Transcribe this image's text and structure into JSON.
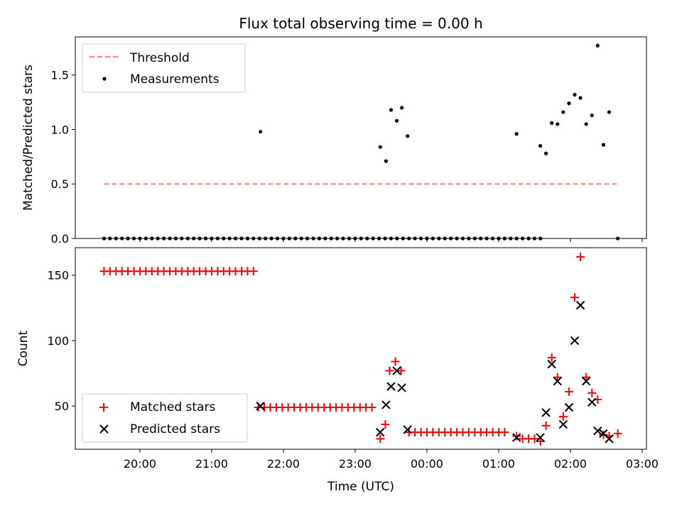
{
  "title": "Flux total observing time = 0.00 h",
  "xlabel": "Time (UTC)",
  "x_ticks": [
    "20:00",
    "21:00",
    "22:00",
    "23:00",
    "00:00",
    "01:00",
    "02:00",
    "03:00"
  ],
  "chart_data": [
    {
      "type": "scatter",
      "panel": "top",
      "ylabel": "Matched/Predicted stars",
      "x_unit": "hours since 19:00 UTC",
      "xlim": [
        0.1,
        8.06
      ],
      "ylim": [
        0.0,
        1.85
      ],
      "y_ticks": [
        0.0,
        0.5,
        1.0,
        1.5
      ],
      "y_tick_labels": [
        "0.0",
        "0.5",
        "1.0",
        "1.5"
      ],
      "legend_position": "upper left",
      "series": [
        {
          "name": "Threshold",
          "style": "dashed-line",
          "color": "#ff7f7f",
          "x": [
            0.5,
            7.66
          ],
          "y": [
            0.5,
            0.5
          ]
        },
        {
          "name": "Measurements",
          "style": "dot",
          "color": "#000000",
          "x": [
            0.5,
            0.583,
            0.667,
            0.75,
            0.833,
            0.917,
            1.0,
            1.083,
            1.167,
            1.25,
            1.333,
            1.417,
            1.5,
            1.583,
            1.667,
            1.75,
            1.833,
            1.917,
            2.0,
            2.083,
            2.167,
            2.25,
            2.333,
            2.417,
            2.5,
            2.583,
            2.667,
            2.75,
            2.833,
            2.917,
            3.0,
            3.083,
            3.167,
            3.25,
            3.333,
            3.417,
            3.5,
            3.583,
            3.667,
            3.75,
            3.833,
            3.917,
            4.0,
            4.083,
            4.167,
            4.25,
            4.333,
            4.417,
            4.5,
            4.583,
            4.667,
            4.75,
            4.833,
            4.917,
            5.0,
            5.083,
            5.167,
            5.25,
            5.333,
            5.417,
            5.5,
            5.583,
            5.667,
            5.75,
            5.833,
            5.917,
            6.0,
            6.083,
            6.167,
            6.25,
            6.333,
            6.417,
            6.5,
            6.583,
            2.68,
            4.35,
            4.43,
            4.5,
            4.58,
            4.65,
            4.73,
            6.25,
            6.58,
            6.66,
            6.74,
            6.82,
            6.9,
            6.98,
            7.06,
            7.14,
            7.22,
            7.3,
            7.38,
            7.46,
            7.54,
            7.66
          ],
          "y": [
            0,
            0,
            0,
            0,
            0,
            0,
            0,
            0,
            0,
            0,
            0,
            0,
            0,
            0,
            0,
            0,
            0,
            0,
            0,
            0,
            0,
            0,
            0,
            0,
            0,
            0,
            0,
            0,
            0,
            0,
            0,
            0,
            0,
            0,
            0,
            0,
            0,
            0,
            0,
            0,
            0,
            0,
            0,
            0,
            0,
            0,
            0,
            0,
            0,
            0,
            0,
            0,
            0,
            0,
            0,
            0,
            0,
            0,
            0,
            0,
            0,
            0,
            0,
            0,
            0,
            0,
            0,
            0,
            0,
            0,
            0,
            0,
            0,
            0,
            0.98,
            0.84,
            0.71,
            1.18,
            1.08,
            1.2,
            0.94,
            0.96,
            0.85,
            0.78,
            1.06,
            1.05,
            1.16,
            1.24,
            1.32,
            1.29,
            1.05,
            1.13,
            1.77,
            0.86,
            1.16,
            0.0
          ]
        }
      ]
    },
    {
      "type": "scatter",
      "panel": "bottom",
      "ylabel": "Count",
      "x_unit": "hours since 19:00 UTC",
      "xlim": [
        0.1,
        8.06
      ],
      "ylim": [
        17.0,
        171.0
      ],
      "y_ticks": [
        50,
        100,
        150
      ],
      "y_tick_labels": [
        "50",
        "100",
        "150"
      ],
      "legend_position": "lower left",
      "series": [
        {
          "name": "Matched stars",
          "marker": "+",
          "color": "#ff0000",
          "x": [
            0.5,
            0.583,
            0.667,
            0.75,
            0.833,
            0.917,
            1.0,
            1.083,
            1.167,
            1.25,
            1.333,
            1.417,
            1.5,
            1.583,
            1.667,
            1.75,
            1.833,
            1.917,
            2.0,
            2.083,
            2.167,
            2.25,
            2.333,
            2.417,
            2.5,
            2.583,
            2.65,
            2.733,
            2.817,
            2.9,
            2.983,
            3.067,
            3.15,
            3.233,
            3.317,
            3.4,
            3.483,
            3.567,
            3.65,
            3.733,
            3.817,
            3.9,
            3.983,
            4.067,
            4.15,
            4.233,
            4.35,
            4.42,
            4.48,
            4.56,
            4.64,
            4.75,
            4.833,
            4.917,
            5.0,
            5.083,
            5.167,
            5.25,
            5.333,
            5.417,
            5.5,
            5.583,
            5.667,
            5.75,
            5.833,
            5.917,
            6.0,
            6.083,
            6.25,
            6.333,
            6.417,
            6.5,
            6.583,
            6.66,
            6.74,
            6.82,
            6.9,
            6.98,
            7.06,
            7.14,
            7.22,
            7.3,
            7.38,
            7.46,
            7.54,
            7.66
          ],
          "y": [
            153,
            153,
            153,
            153,
            153,
            153,
            153,
            153,
            153,
            153,
            153,
            153,
            153,
            153,
            153,
            153,
            153,
            153,
            153,
            153,
            153,
            153,
            153,
            153,
            153,
            153,
            49,
            49,
            49,
            49,
            49,
            49,
            49,
            49,
            49,
            49,
            49,
            49,
            49,
            49,
            49,
            49,
            49,
            49,
            49,
            49,
            25,
            36,
            77,
            84,
            77,
            30,
            30,
            30,
            30,
            30,
            30,
            30,
            30,
            30,
            30,
            30,
            30,
            30,
            30,
            30,
            30,
            30,
            27,
            25,
            25,
            25,
            23,
            35,
            87,
            72,
            42,
            61,
            133,
            164,
            72,
            60,
            55,
            28,
            27,
            29
          ],
          "outlier": {
            "x": 4.48,
            "y": 77
          }
        },
        {
          "name": "Predicted stars",
          "marker": "x",
          "color": "#000000",
          "x": [
            2.68,
            4.35,
            4.43,
            4.5,
            4.58,
            4.65,
            4.73,
            6.25,
            6.58,
            6.66,
            6.74,
            6.82,
            6.9,
            6.98,
            7.06,
            7.14,
            7.22,
            7.3,
            7.38,
            7.46,
            7.54
          ],
          "y": [
            50,
            30,
            51,
            65,
            77,
            64,
            32,
            26,
            26,
            45,
            82,
            69,
            36,
            49,
            100,
            127,
            69,
            53,
            31,
            29,
            25
          ]
        }
      ]
    }
  ]
}
